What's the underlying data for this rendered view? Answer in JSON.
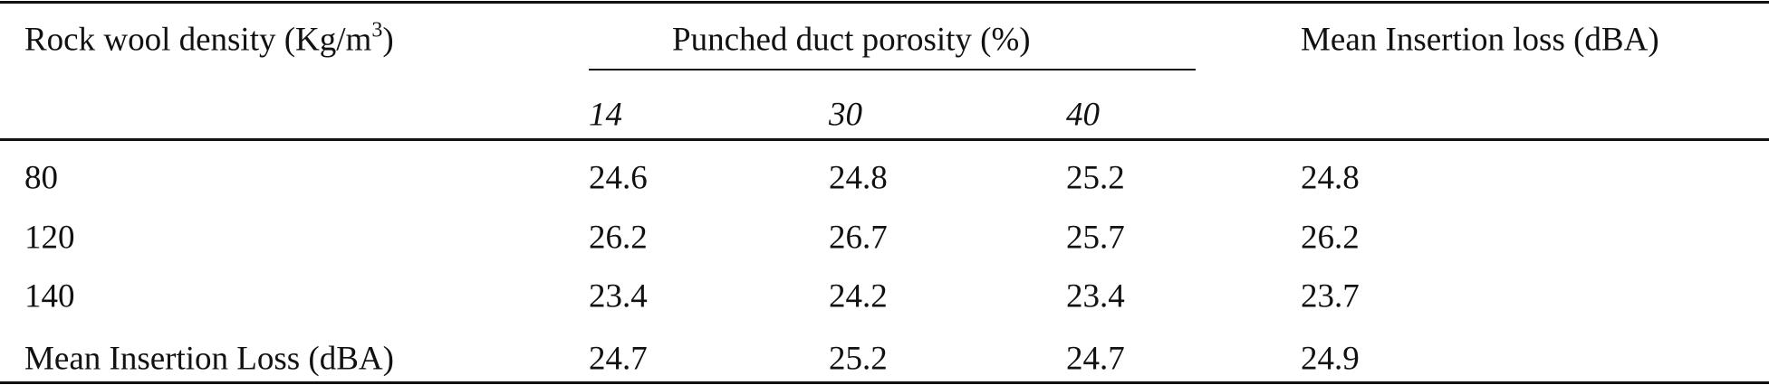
{
  "table": {
    "header": {
      "density": {
        "text": "Rock wool density (Kg/m",
        "sup": "3",
        "after": ")"
      },
      "porosity": "Punched duct porosity (%)",
      "mean": "Mean Insertion loss (dBA)",
      "porosity_levels": [
        "14",
        "30",
        "40"
      ]
    },
    "rows": [
      [
        "80",
        24.6,
        24.8,
        25.2,
        24.8
      ],
      [
        "120",
        26.2,
        26.7,
        25.7,
        26.2
      ],
      [
        "140",
        23.4,
        24.2,
        23.4,
        23.7
      ],
      [
        "Mean Insertion Loss (dBA)",
        24.7,
        25.2,
        24.7,
        24.9
      ]
    ]
  }
}
